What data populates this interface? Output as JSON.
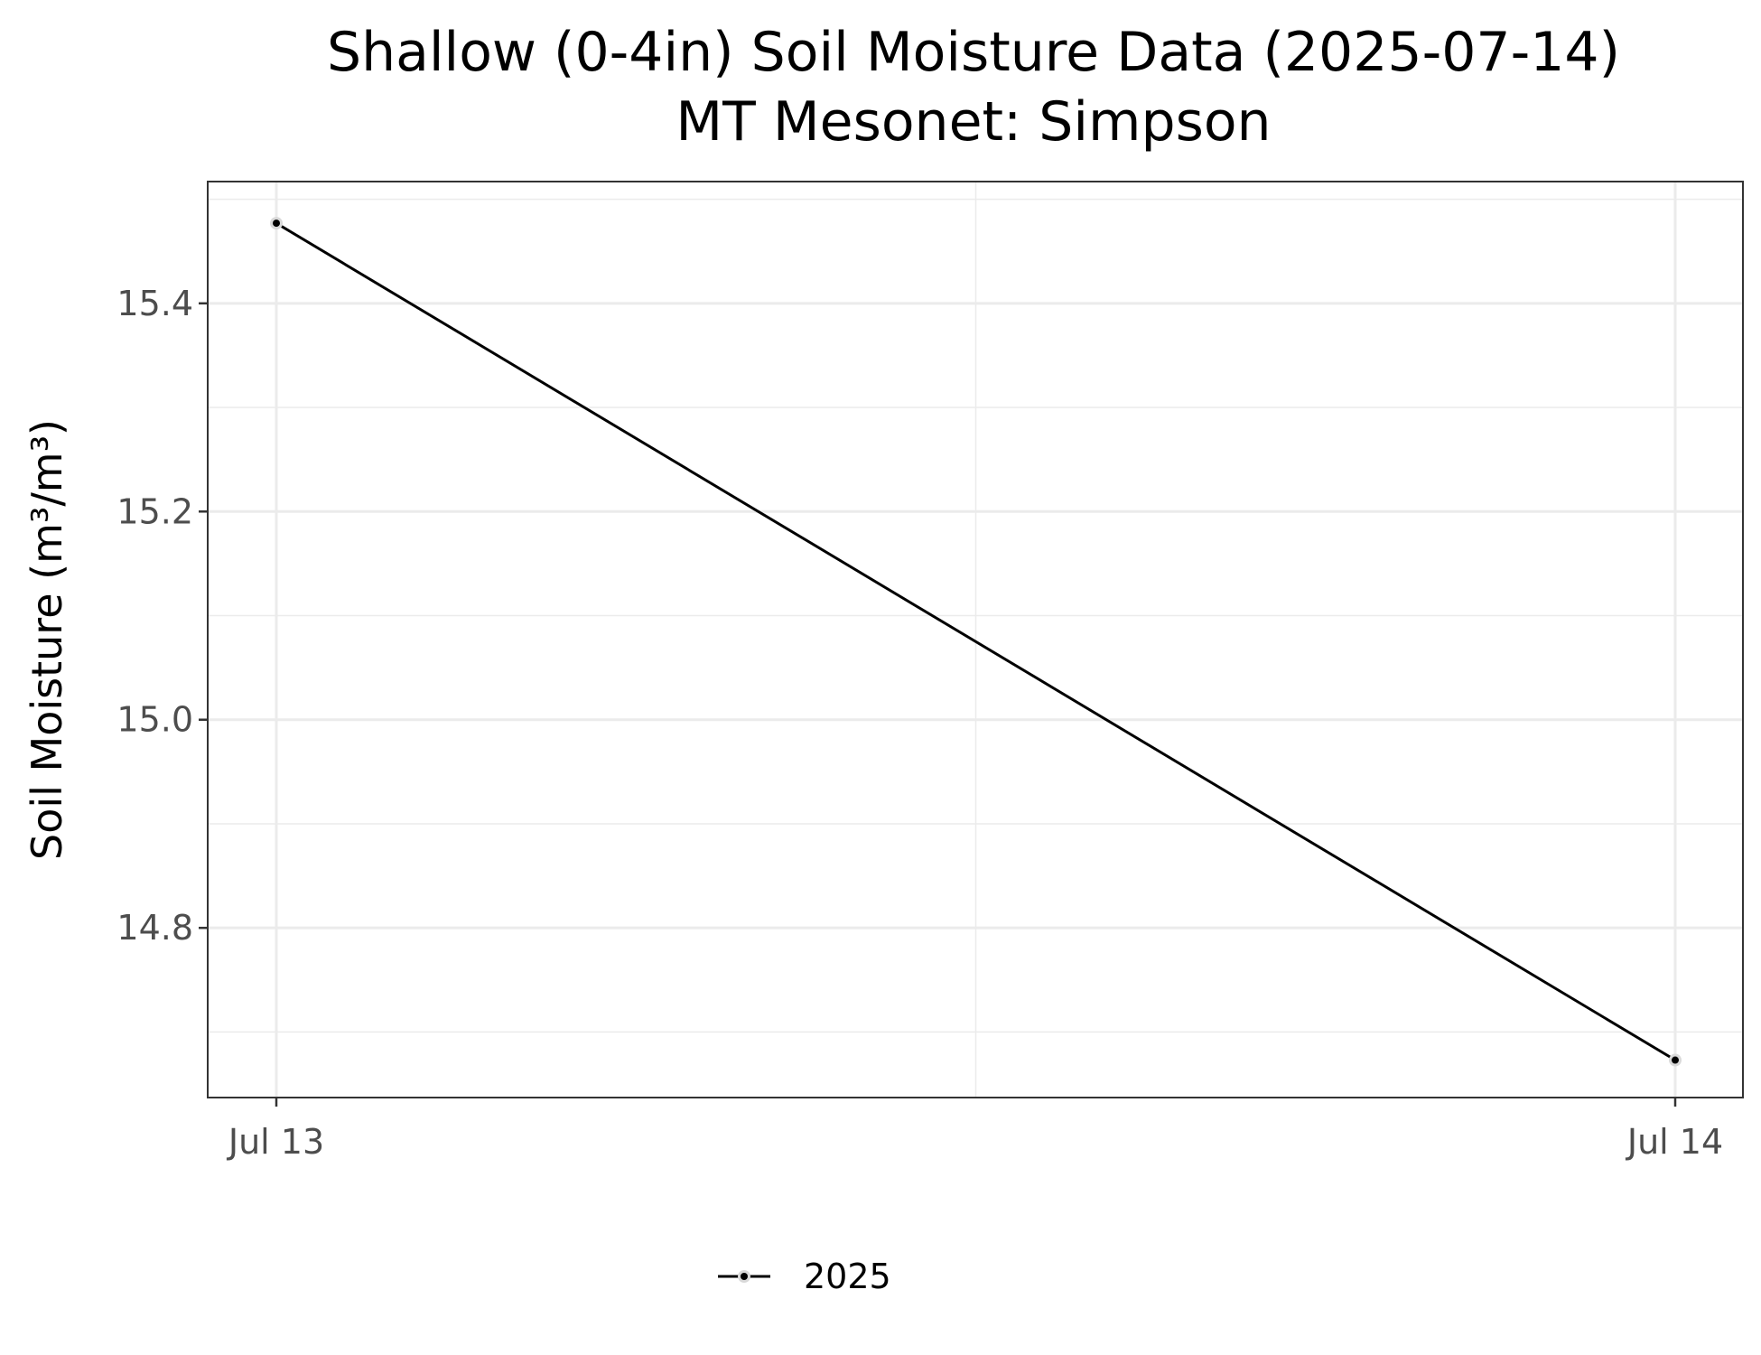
{
  "chart_data": {
    "type": "line",
    "title": "Shallow (0-4in) Soil Moisture Data (2025-07-14)",
    "subtitle": "MT Mesonet: Simpson",
    "xlabel": "",
    "ylabel": "Soil Moisture (m³/m³)",
    "x_ticks": [
      "Jul 13",
      "Jul 14"
    ],
    "y_ticks": [
      14.8,
      15.0,
      15.2,
      15.4
    ],
    "ylim": [
      14.637,
      15.517
    ],
    "grid": true,
    "legend": "bottom",
    "series": [
      {
        "name": "2025",
        "color": "#000000",
        "x": [
          "Jul 13",
          "Jul 14"
        ],
        "values": [
          15.477,
          14.673
        ]
      }
    ]
  }
}
